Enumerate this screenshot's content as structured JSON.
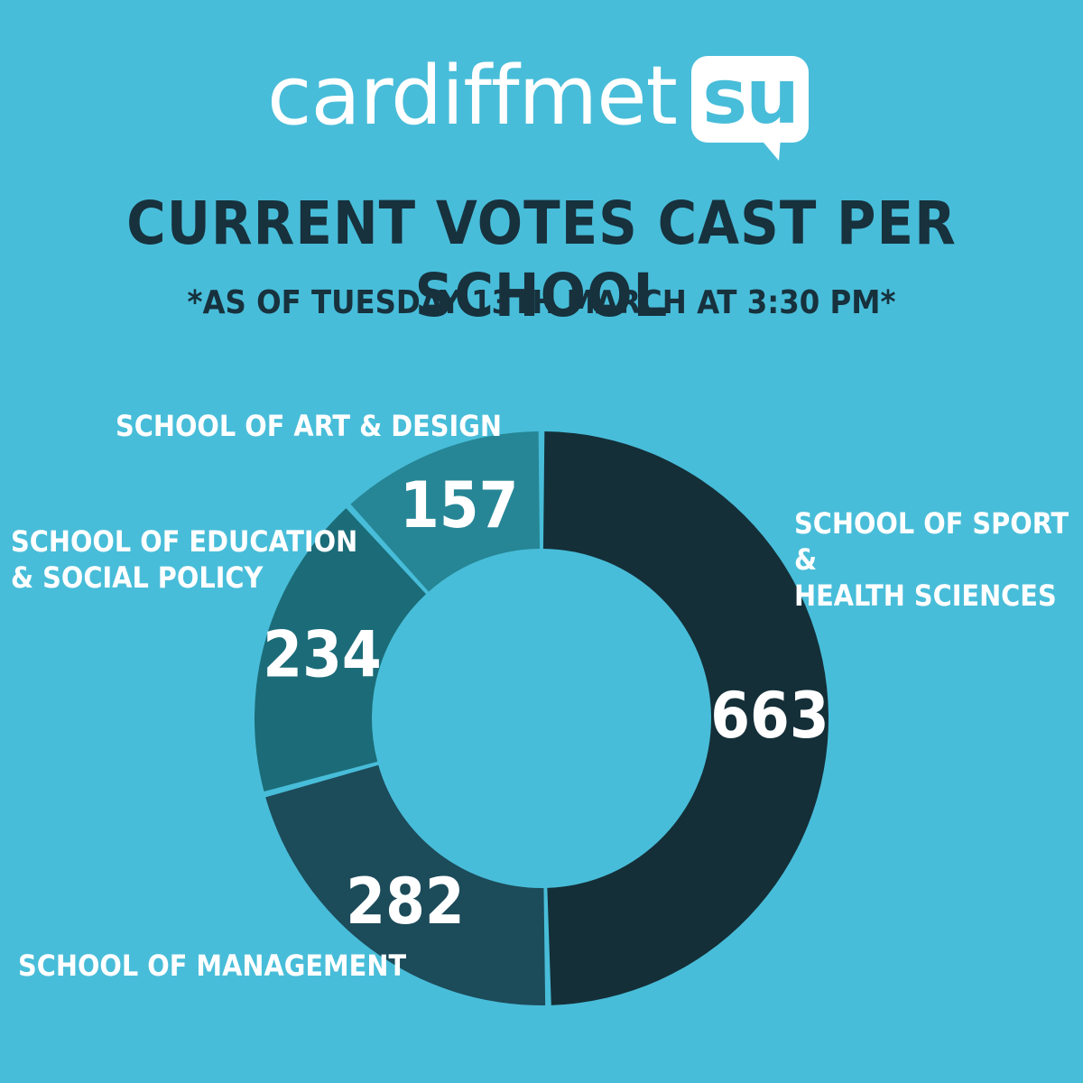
{
  "logo": {
    "text": "cardiffmet",
    "badge": "su"
  },
  "title": "CURRENT VOTES CAST PER SCHOOL",
  "subtitle": "*AS OF TUESDAY 13TH MARCH AT 3:30 PM*",
  "colors": {
    "background": "#48bdd9",
    "title": "#17313d",
    "sport": "#142f38",
    "management": "#1c4b5a",
    "education": "#1b6c78",
    "art": "#268696"
  },
  "chart_data": {
    "type": "pie",
    "title": "CURRENT VOTES CAST PER SCHOOL",
    "donut": true,
    "slices": [
      {
        "key": "sport",
        "label": [
          "SCHOOL OF SPORT &",
          "HEALTH SCIENCES"
        ],
        "value": 663
      },
      {
        "key": "management",
        "label": [
          "SCHOOL OF MANAGEMENT"
        ],
        "value": 282
      },
      {
        "key": "education",
        "label": [
          "SCHOOL OF EDUCATION",
          "& SOCIAL POLICY"
        ],
        "value": 234
      },
      {
        "key": "art",
        "label": [
          "SCHOOL OF ART & DESIGN"
        ],
        "value": 157
      }
    ]
  }
}
